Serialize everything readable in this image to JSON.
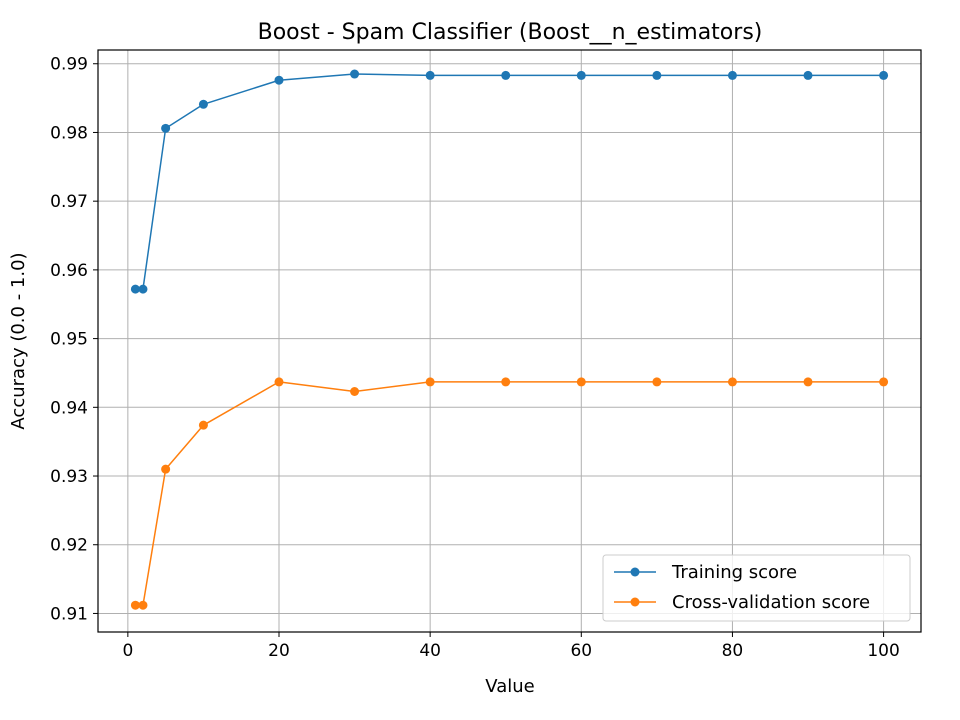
{
  "chart_data": {
    "type": "line",
    "title": "Boost - Spam Classifier (Boost__n_estimators)",
    "xlabel": "Value",
    "ylabel": "Accuracy (0.0 - 1.0)",
    "xlim": [
      -3.95,
      104.95
    ],
    "ylim": [
      0.9073,
      0.992
    ],
    "xticks": [
      0,
      20,
      40,
      60,
      80,
      100
    ],
    "xtick_labels": [
      "0",
      "20",
      "40",
      "60",
      "80",
      "100"
    ],
    "yticks": [
      0.91,
      0.92,
      0.93,
      0.94,
      0.95,
      0.96,
      0.97,
      0.98,
      0.99
    ],
    "ytick_labels": [
      "0.91",
      "0.92",
      "0.93",
      "0.94",
      "0.95",
      "0.96",
      "0.97",
      "0.98",
      "0.99"
    ],
    "grid": true,
    "legend_position": "lower-right",
    "x": [
      1,
      2,
      5,
      10,
      20,
      30,
      40,
      50,
      60,
      70,
      80,
      90,
      100
    ],
    "series": [
      {
        "name": "Training score",
        "color": "#1f77b4",
        "values": [
          0.9572,
          0.9572,
          0.9806,
          0.9841,
          0.9876,
          0.9885,
          0.9883,
          0.9883,
          0.9883,
          0.9883,
          0.9883,
          0.9883,
          0.9883
        ]
      },
      {
        "name": "Cross-validation score",
        "color": "#ff7f0e",
        "values": [
          0.9112,
          0.9112,
          0.931,
          0.9374,
          0.9437,
          0.9423,
          0.9437,
          0.9437,
          0.9437,
          0.9437,
          0.9437,
          0.9437,
          0.9437
        ]
      }
    ]
  }
}
